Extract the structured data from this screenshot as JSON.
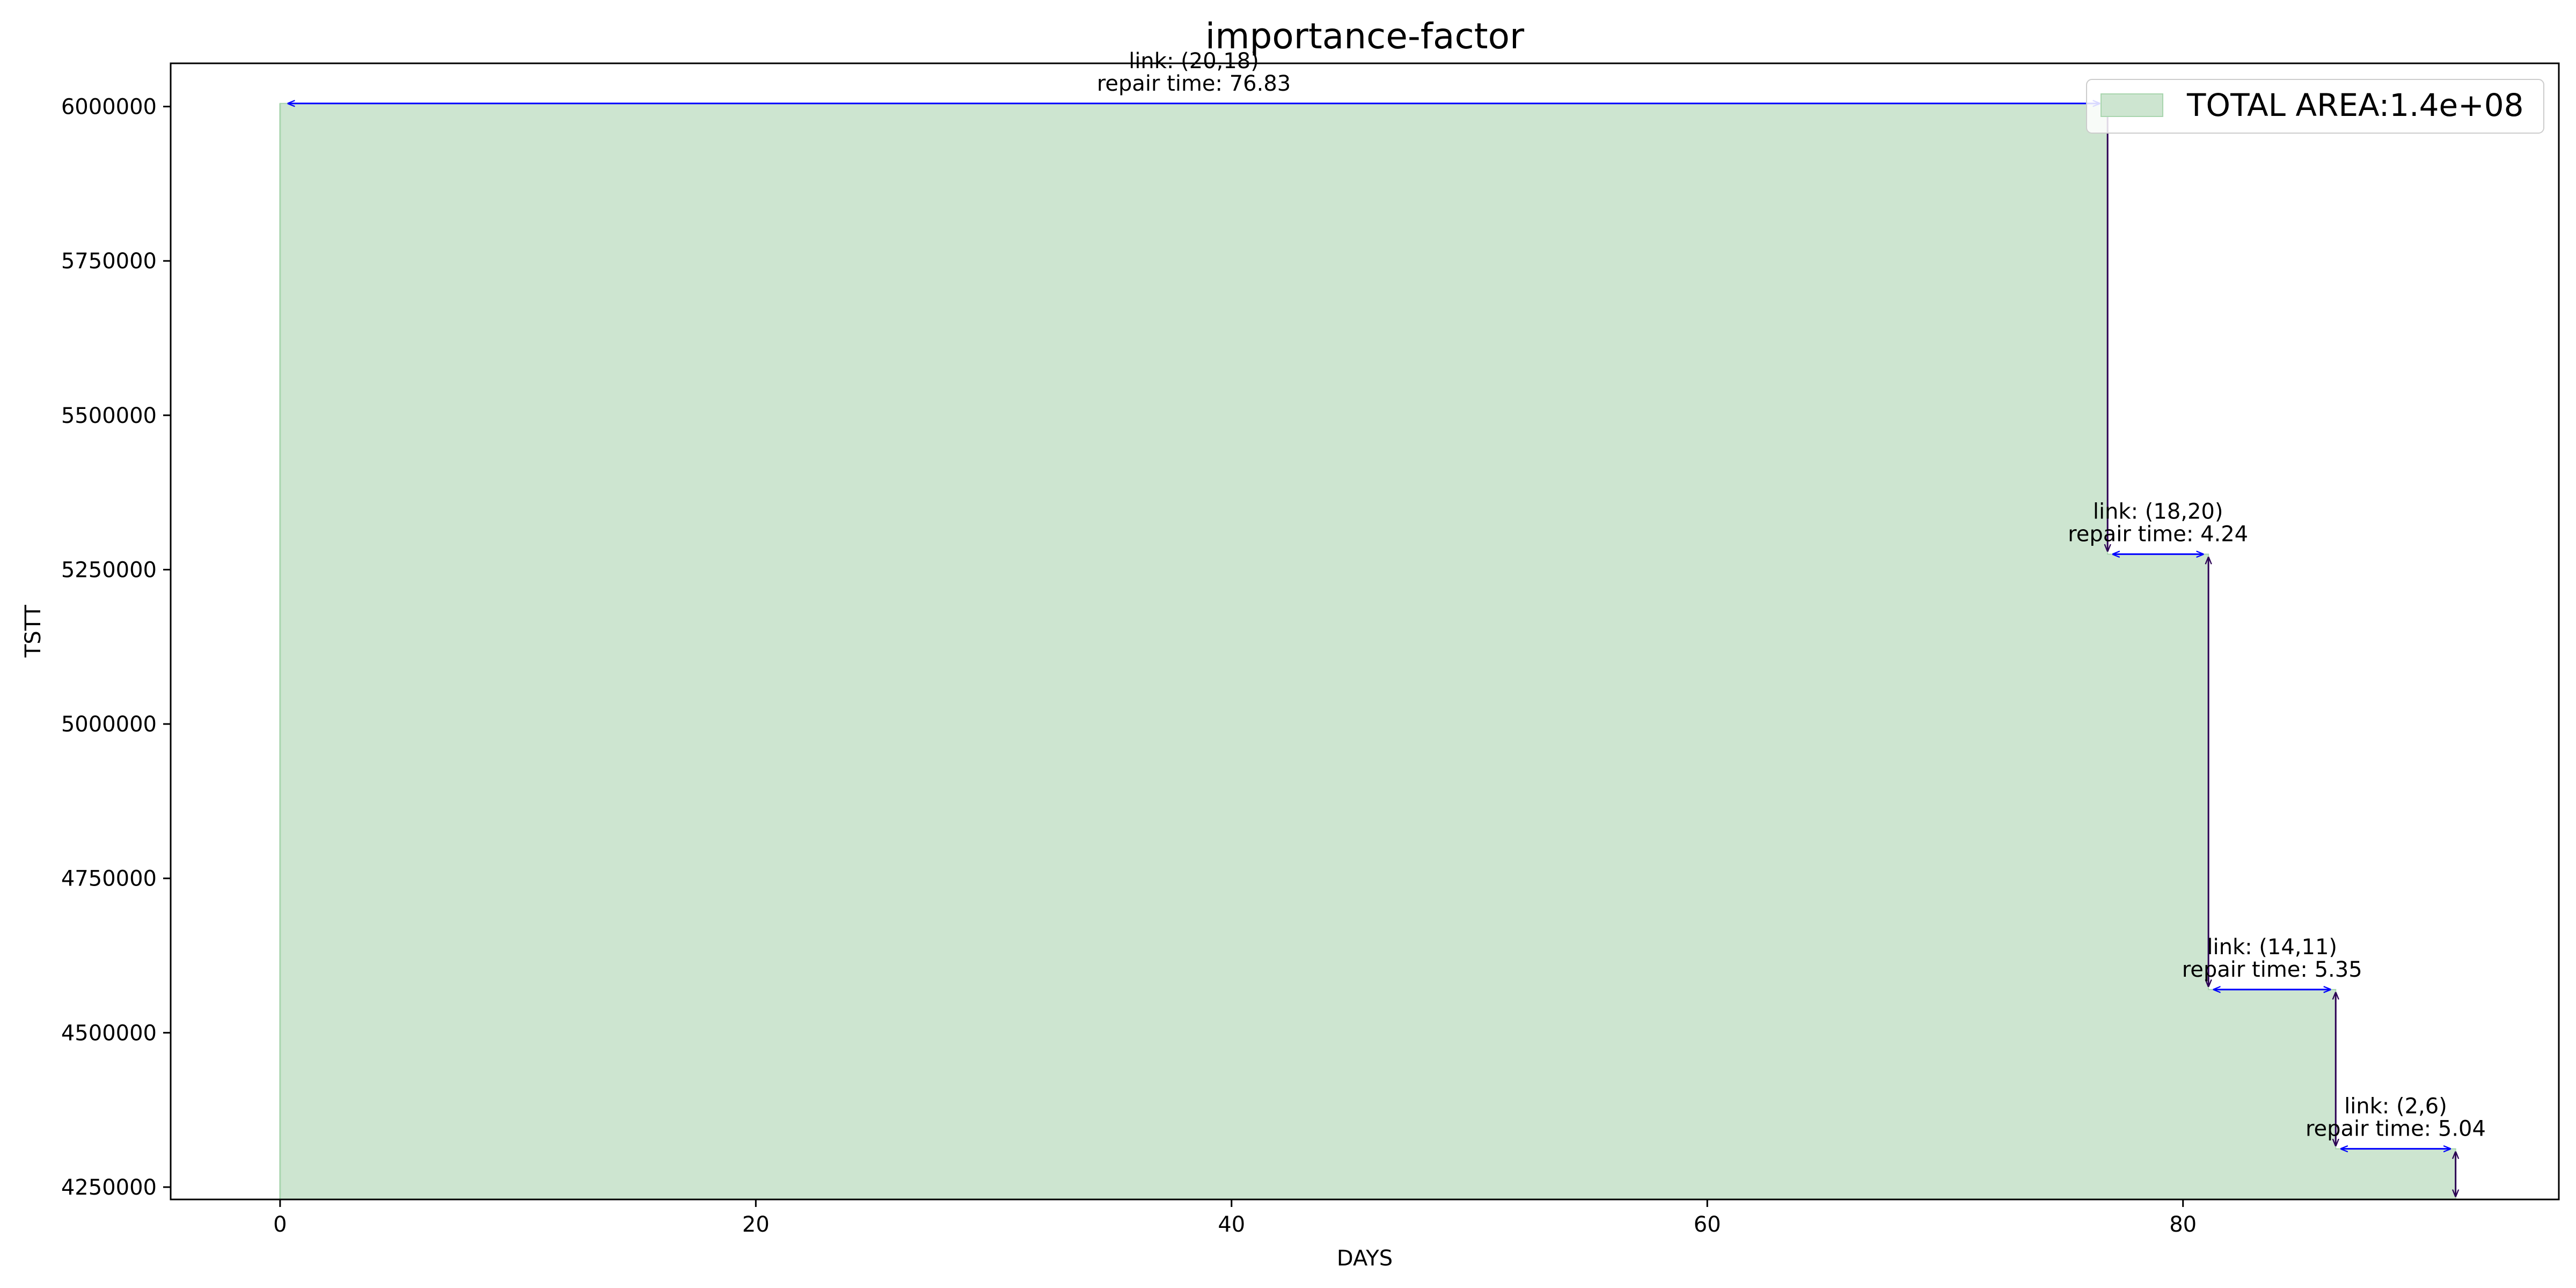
{
  "chart_data": {
    "type": "area",
    "title": "importance-factor",
    "xlabel": "DAYS",
    "ylabel": "TSTT",
    "xlim": [
      -4.6,
      95.8
    ],
    "ylim": [
      4230000,
      6070000
    ],
    "xticks": [
      0,
      20,
      40,
      60,
      80
    ],
    "yticks": [
      4250000,
      4500000,
      4750000,
      5000000,
      5250000,
      5500000,
      5750000,
      6000000
    ],
    "grid": false,
    "legend_position": "top-right",
    "fill_color": "#cde5d0",
    "fill_edge_color": "#a8d5ae",
    "arrow_color_horizontal": "#0000ff",
    "arrow_color_vertical": "#2b0054",
    "series": [
      {
        "name": "TOTAL AREA:1.4e+08",
        "steps": [
          {
            "x0": 0,
            "x1": 76.83,
            "y": 6005000
          },
          {
            "x0": 76.83,
            "x1": 81.07,
            "y": 5275000
          },
          {
            "x0": 81.07,
            "x1": 86.42,
            "y": 4570000
          },
          {
            "x0": 86.42,
            "x1": 91.46,
            "y": 4312000
          }
        ],
        "end": {
          "x": 91.46,
          "y": 4230000
        }
      }
    ],
    "annotations": [
      {
        "link_label": "link: (20,18)",
        "repair_label": "repair time: 76.83",
        "x0": 0,
        "x1": 76.83,
        "y": 6005000,
        "y_next": 5275000
      },
      {
        "link_label": "link: (18,20)",
        "repair_label": "repair time: 4.24",
        "x0": 76.83,
        "x1": 81.07,
        "y": 5275000,
        "y_next": 4570000
      },
      {
        "link_label": "link: (14,11)",
        "repair_label": "repair time: 5.35",
        "x0": 81.07,
        "x1": 86.42,
        "y": 4570000,
        "y_next": 4312000
      },
      {
        "link_label": "link: (2,6)",
        "repair_label": "repair time: 5.04",
        "x0": 86.42,
        "x1": 91.46,
        "y": 4312000,
        "y_next": 4230000
      }
    ]
  }
}
